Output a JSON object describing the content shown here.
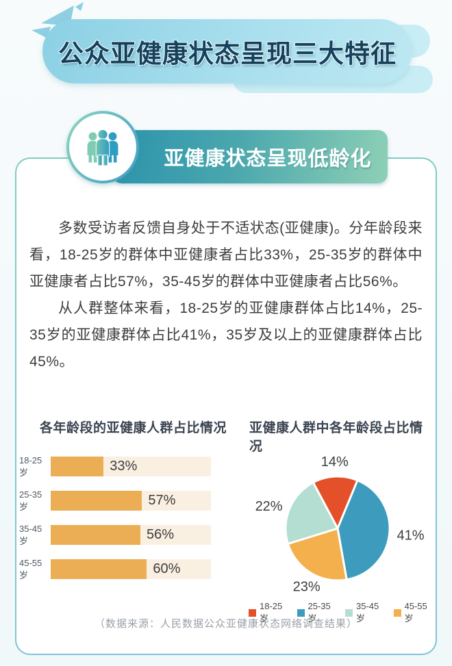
{
  "banner": {
    "title": "公众亚健康状态呈现三大特征"
  },
  "badge": {
    "title_normal": "亚健康状态呈现",
    "title_bold": "低龄化",
    "icon": "people-group-icon"
  },
  "paragraphs": [
    "多数受访者反馈自身处于不适状态(亚健康)。分年龄段来看，18-25岁的群体中亚健康者占比33%，25-35岁的群体中亚健康者占比57%，35-45岁的群体中亚健康者占比56%。",
    "从人群整体来看，18-25岁的亚健康群体占比14%，25-35岁的亚健康群体占比41%，35岁及以上的亚健康群体占比45%。"
  ],
  "chart_data": [
    {
      "type": "bar",
      "title": "各年龄段的亚健康人群占比情况",
      "orientation": "horizontal",
      "categories": [
        "18-25岁",
        "25-35岁",
        "35-45岁",
        "45-55岁"
      ],
      "values": [
        33,
        57,
        56,
        60
      ],
      "value_labels": [
        "33%",
        "57%",
        "56%",
        "60%"
      ],
      "unit": "%",
      "xlim": [
        0,
        100
      ],
      "grid": false,
      "bar_color": "#ecae55",
      "track_color": "#faf0e2"
    },
    {
      "type": "pie",
      "title": "亚健康人群中各年龄段占比情况",
      "categories": [
        "18-25岁",
        "25-35岁",
        "35-45岁",
        "45-55岁"
      ],
      "values": [
        14,
        41,
        22,
        23
      ],
      "value_labels": [
        "14%",
        "41%",
        "22%",
        "23%"
      ],
      "colors": [
        "#e4502a",
        "#3d9cbd",
        "#b5ded2",
        "#f5b04e"
      ],
      "start_angle_deg": -28,
      "slices_clockwise_from_top": [
        {
          "label": "18-25岁",
          "value": 14,
          "text": "14%",
          "color": "#e4502a"
        },
        {
          "label": "25-35岁",
          "value": 41,
          "text": "41%",
          "color": "#3d9cbd"
        },
        {
          "label": "45-55岁",
          "value": 23,
          "text": "23%",
          "color": "#f5b04e"
        },
        {
          "label": "35-45岁",
          "value": 22,
          "text": "22%",
          "color": "#b5ded2"
        }
      ],
      "legend_position": "bottom",
      "legend": [
        {
          "label": "18-25岁",
          "color": "#e4502a"
        },
        {
          "label": "25-35岁",
          "color": "#3d9cbd"
        },
        {
          "label": "35-45岁",
          "color": "#b5ded2"
        },
        {
          "label": "45-55岁",
          "color": "#f5b04e"
        }
      ]
    }
  ],
  "footer": {
    "source": "（数据来源：人民数据公众亚健康状态网络调查结果）"
  }
}
